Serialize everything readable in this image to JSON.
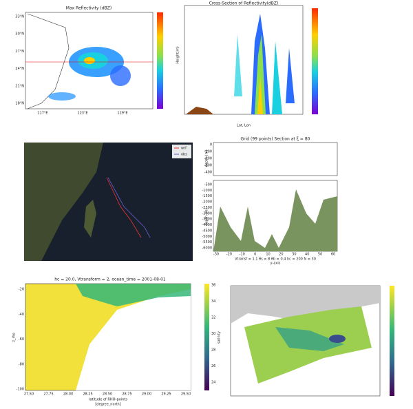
{
  "panels": [
    {
      "title": "Max Reflectivity (dBZ)",
      "yticks": [
        "33°N",
        "30°N",
        "27°N",
        "24°N",
        "21°N",
        "18°N"
      ],
      "xticks": [
        "117°E",
        "123°E",
        "129°E"
      ]
    },
    {
      "title": "Cross-Section of Reflectivity(dBZ)",
      "xlabel": "Lat, Lon",
      "ylabel": "Height(m)"
    },
    {
      "legend": [
        "wrf",
        "obs"
      ]
    },
    {
      "title": "Grid (99 points) Section at  ξ = 80",
      "ylabel": "depth (m)",
      "yticks_top": [
        "0",
        "-100",
        "-200",
        "-300",
        "-400"
      ],
      "yticks_bottom": [
        "-500",
        "-1000",
        "-1500",
        "-2000",
        "-2500",
        "-3000",
        "-3500",
        "-4000",
        "-4500",
        "-5000",
        "-5500",
        "-6000"
      ],
      "xticks": [
        "-30",
        "-20",
        "-10",
        "0",
        "10",
        "20",
        "30",
        "40",
        "50",
        "60"
      ],
      "xlabel": "y-axis",
      "footer": "Vtransf = 1.1   θs = 8   θb = 0.4   hc = 200   N = 30"
    },
    {
      "title": "hc = 20.0, Vtransform = 2, ocean_time = 2001-08-01",
      "ylabel": "z_rho",
      "yticks": [
        "-20",
        "-40",
        "-60",
        "-80",
        "-100"
      ],
      "xticks": [
        "27.50",
        "27.75",
        "28.00",
        "28.25",
        "28.50",
        "28.75",
        "29.00",
        "29.25",
        "29.50"
      ],
      "xlabel": "latitude of RHO-points",
      "xunit": "[degree_north]",
      "cticks": [
        "36",
        "34",
        "32",
        "30",
        "28",
        "26",
        "24"
      ],
      "clabel": "salinity"
    }
  ]
}
